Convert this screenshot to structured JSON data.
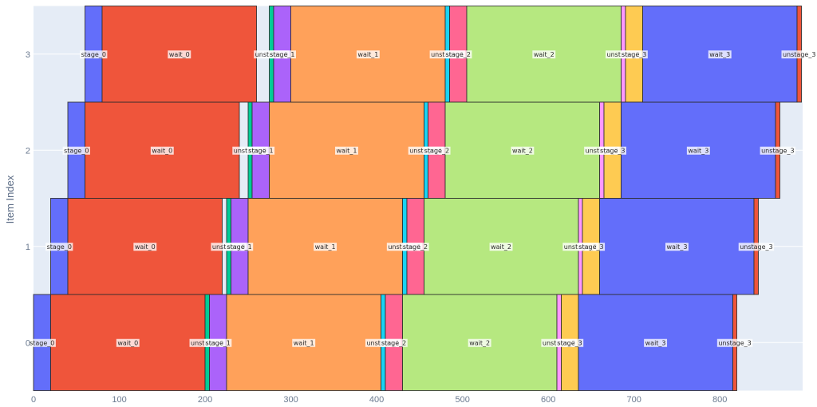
{
  "chart_data": {
    "type": "bar",
    "orientation": "horizontal",
    "title": "",
    "xlabel": "",
    "ylabel": "Item Index",
    "xlim": [
      0,
      896.5
    ],
    "ylim": [
      -0.5,
      3.5
    ],
    "grid": true,
    "legend": "none",
    "x_ticks": [
      "0",
      "100",
      "200",
      "300",
      "400",
      "500",
      "600",
      "700",
      "800"
    ],
    "x_tick_values": [
      0,
      100,
      200,
      300,
      400,
      500,
      600,
      700,
      800
    ],
    "y_ticks": [
      "0",
      "1",
      "2",
      "3"
    ],
    "y_tick_values": [
      0,
      1,
      2,
      3
    ],
    "series": [
      {
        "name": "stage_0",
        "color": "#636EFA",
        "bars": [
          {
            "item": 0,
            "start": 0,
            "end": 20
          },
          {
            "item": 1,
            "start": 20,
            "end": 40
          },
          {
            "item": 2,
            "start": 40,
            "end": 60
          },
          {
            "item": 3,
            "start": 60,
            "end": 80
          }
        ]
      },
      {
        "name": "wait_0",
        "color": "#EF553B",
        "bars": [
          {
            "item": 0,
            "start": 20,
            "end": 200
          },
          {
            "item": 1,
            "start": 40,
            "end": 220
          },
          {
            "item": 2,
            "start": 60,
            "end": 240
          },
          {
            "item": 3,
            "start": 80,
            "end": 260
          }
        ]
      },
      {
        "name": "unstage_0",
        "color": "#00CC96",
        "bars": [
          {
            "item": 0,
            "start": 200,
            "end": 205
          },
          {
            "item": 1,
            "start": 225,
            "end": 230
          },
          {
            "item": 2,
            "start": 250,
            "end": 255
          },
          {
            "item": 3,
            "start": 275,
            "end": 280
          }
        ]
      },
      {
        "name": "stage_1",
        "color": "#AB63FA",
        "bars": [
          {
            "item": 0,
            "start": 205,
            "end": 225
          },
          {
            "item": 1,
            "start": 230,
            "end": 250
          },
          {
            "item": 2,
            "start": 255,
            "end": 275
          },
          {
            "item": 3,
            "start": 280,
            "end": 300
          }
        ]
      },
      {
        "name": "wait_1",
        "color": "#FFA15A",
        "bars": [
          {
            "item": 0,
            "start": 225,
            "end": 405
          },
          {
            "item": 1,
            "start": 250,
            "end": 430
          },
          {
            "item": 2,
            "start": 275,
            "end": 455
          },
          {
            "item": 3,
            "start": 300,
            "end": 480
          }
        ]
      },
      {
        "name": "unstage_1",
        "color": "#19D3F3",
        "bars": [
          {
            "item": 0,
            "start": 405,
            "end": 410
          },
          {
            "item": 1,
            "start": 430,
            "end": 435
          },
          {
            "item": 2,
            "start": 455,
            "end": 460
          },
          {
            "item": 3,
            "start": 480,
            "end": 485
          }
        ]
      },
      {
        "name": "stage_2",
        "color": "#FF6692",
        "bars": [
          {
            "item": 0,
            "start": 410,
            "end": 430
          },
          {
            "item": 1,
            "start": 435,
            "end": 455
          },
          {
            "item": 2,
            "start": 460,
            "end": 480
          },
          {
            "item": 3,
            "start": 485,
            "end": 505
          }
        ]
      },
      {
        "name": "wait_2",
        "color": "#B6E880",
        "bars": [
          {
            "item": 0,
            "start": 430,
            "end": 610
          },
          {
            "item": 1,
            "start": 455,
            "end": 635
          },
          {
            "item": 2,
            "start": 480,
            "end": 660
          },
          {
            "item": 3,
            "start": 505,
            "end": 685
          }
        ]
      },
      {
        "name": "unstage_2",
        "color": "#FF97FF",
        "bars": [
          {
            "item": 0,
            "start": 610,
            "end": 615
          },
          {
            "item": 1,
            "start": 635,
            "end": 640
          },
          {
            "item": 2,
            "start": 660,
            "end": 665
          },
          {
            "item": 3,
            "start": 685,
            "end": 690
          }
        ]
      },
      {
        "name": "stage_3",
        "color": "#FECB52",
        "bars": [
          {
            "item": 0,
            "start": 615,
            "end": 635
          },
          {
            "item": 1,
            "start": 640,
            "end": 660
          },
          {
            "item": 2,
            "start": 665,
            "end": 685
          },
          {
            "item": 3,
            "start": 690,
            "end": 710
          }
        ]
      },
      {
        "name": "wait_3",
        "color": "#636EFA",
        "bars": [
          {
            "item": 0,
            "start": 635,
            "end": 815
          },
          {
            "item": 1,
            "start": 660,
            "end": 840
          },
          {
            "item": 2,
            "start": 685,
            "end": 865
          },
          {
            "item": 3,
            "start": 710,
            "end": 890
          }
        ]
      },
      {
        "name": "unstage_3",
        "color": "#EF553B",
        "bars": [
          {
            "item": 0,
            "start": 815,
            "end": 820
          },
          {
            "item": 1,
            "start": 840,
            "end": 845
          },
          {
            "item": 2,
            "start": 865,
            "end": 870
          },
          {
            "item": 3,
            "start": 890,
            "end": 895
          }
        ]
      }
    ]
  }
}
